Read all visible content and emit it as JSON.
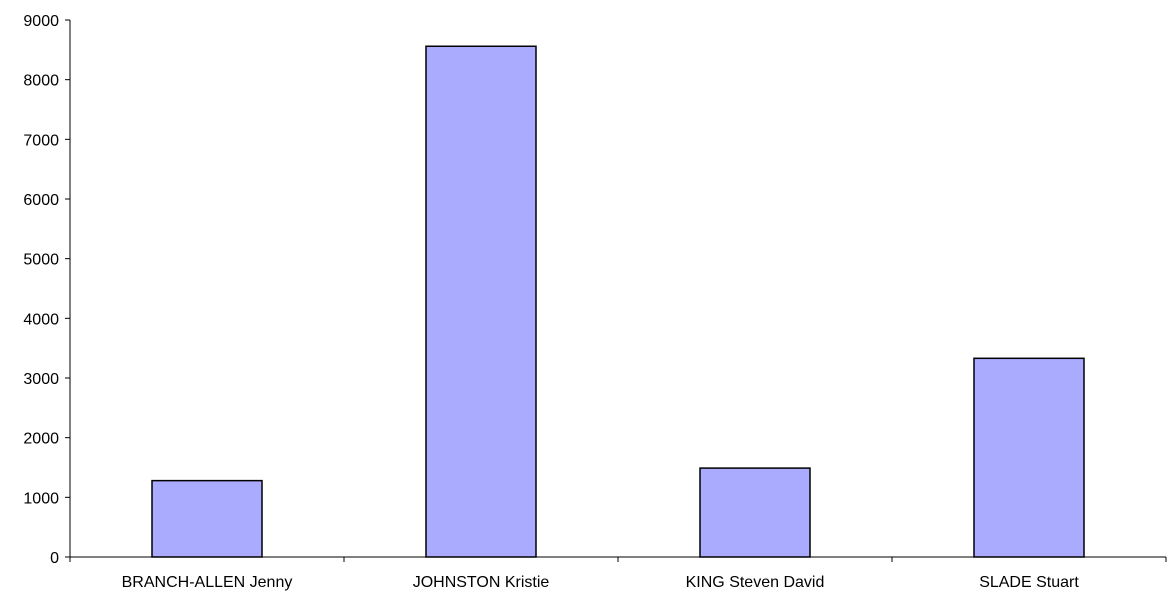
{
  "chart_data": {
    "type": "bar",
    "title": "",
    "xlabel": "",
    "ylabel": "",
    "categories": [
      "BRANCH-ALLEN Jenny",
      "JOHNSTON Kristie",
      "KING Steven David",
      "SLADE Stuart"
    ],
    "values": [
      1280,
      8560,
      1490,
      3330
    ],
    "ylim": [
      0,
      9000
    ],
    "yticks": [
      0,
      1000,
      2000,
      3000,
      4000,
      5000,
      6000,
      7000,
      8000,
      9000
    ],
    "grid": false,
    "legend": "none",
    "colors": {
      "bar_fill": "#aaaaff",
      "bar_stroke": "#000000",
      "axis": "#000000"
    }
  }
}
